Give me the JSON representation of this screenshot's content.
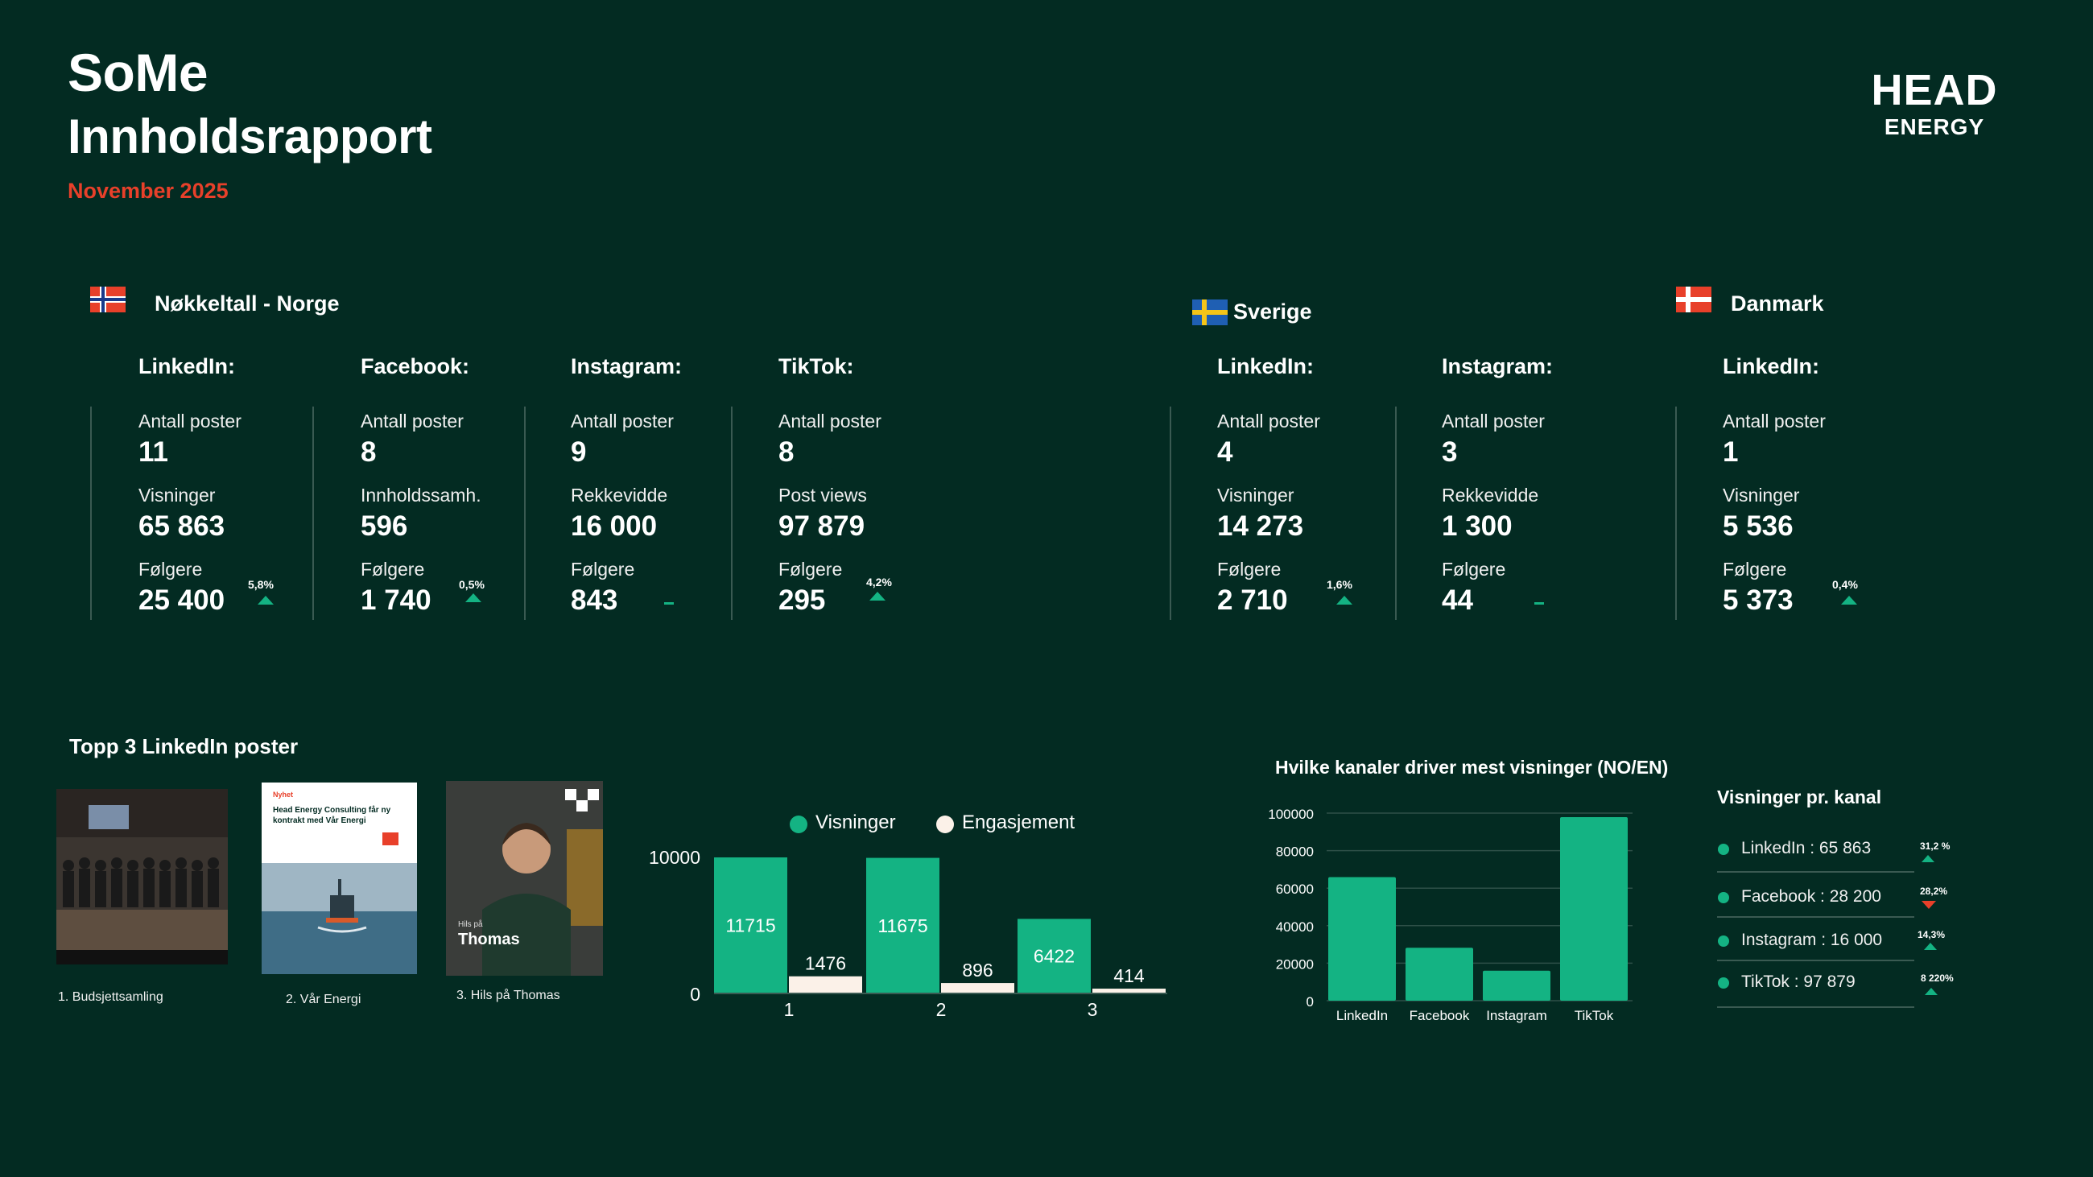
{
  "header": {
    "title_line1": "SoMe",
    "title_line2": "Innholdsrapport",
    "subtitle": "November 2025",
    "logo_line1": "HEAD",
    "logo_line2": "ENERGY"
  },
  "norway": {
    "heading": "Nøkkeltall - Norge",
    "linkedin": {
      "platform": "LinkedIn:",
      "l1": "Antall poster",
      "v1": "11",
      "l2": "Visninger",
      "v2": "65 863",
      "l3": "Følgere",
      "v3": "25 400",
      "delta": "5,8%"
    },
    "facebook": {
      "platform": "Facebook:",
      "l1": "Antall poster",
      "v1": "8",
      "l2": "Innholdssamh.",
      "v2": "596",
      "l3": "Følgere",
      "v3": "1 740",
      "delta": "0,5%"
    },
    "instagram": {
      "platform": "Instagram:",
      "l1": "Antall poster",
      "v1": "9",
      "l2": "Rekkevidde",
      "v2": "16 000",
      "l3": "Følgere",
      "v3": "843"
    },
    "tiktok": {
      "platform": "TikTok:",
      "l1": "Antall poster",
      "v1": "8",
      "l2": "Post views",
      "v2": "97 879",
      "l3": "Følgere",
      "v3": "295",
      "delta": "4,2%"
    }
  },
  "sweden": {
    "heading": "Sverige",
    "linkedin": {
      "platform": "LinkedIn:",
      "l1": "Antall poster",
      "v1": "4",
      "l2": "Visninger",
      "v2": "14 273",
      "l3": "Følgere",
      "v3": "2 710",
      "delta": "1,6%"
    },
    "instagram": {
      "platform": "Instagram:",
      "l1": "Antall poster",
      "v1": "3",
      "l2": "Rekkevidde",
      "v2": "1 300",
      "l3": "Følgere",
      "v3": "44"
    }
  },
  "denmark": {
    "heading": "Danmark",
    "linkedin": {
      "platform": "LinkedIn:",
      "l1": "Antall poster",
      "v1": "1",
      "l2": "Visninger",
      "v2": "5 536",
      "l3": "Følgere",
      "v3": "5 373",
      "delta": "0,4%"
    }
  },
  "top3": {
    "heading": "Topp 3 LinkedIn poster",
    "posts": [
      {
        "caption": "1. Budsjettsamling"
      },
      {
        "caption": "2. Vår Energi",
        "thumb_tag": "Nyhet",
        "thumb_title": "Head Energy Consulting får ny kontrakt med Vår Energi"
      },
      {
        "caption": "3. Hils på Thomas",
        "thumb_small": "Hils på",
        "thumb_name": "Thomas"
      }
    ]
  },
  "colors": {
    "background": "#032b22",
    "accent_green": "#14b383",
    "accent_red": "#e8402a",
    "engagement": "#fbf1e8"
  },
  "chart_data": [
    {
      "type": "bar",
      "categories": [
        "1",
        "2",
        "3"
      ],
      "series": [
        {
          "name": "Visninger",
          "values": [
            11715,
            11675,
            6422
          ]
        },
        {
          "name": "Engasjement",
          "values": [
            1476,
            896,
            414
          ]
        }
      ],
      "yticks": [
        "0",
        "10000"
      ],
      "ylim": [
        0,
        11715
      ],
      "legend": "top"
    },
    {
      "type": "bar",
      "title": "Hvilke kanaler driver mest visninger (NO/EN)",
      "categories": [
        "LinkedIn",
        "Facebook",
        "Instagram",
        "TikTok"
      ],
      "values": [
        65863,
        28200,
        16000,
        97879
      ],
      "yticks": [
        "0",
        "20000",
        "40000",
        "60000",
        "80000",
        "100000"
      ],
      "ylim": [
        0,
        100000
      ],
      "grid": true
    }
  ],
  "kanal": {
    "heading": "Visninger pr. kanal",
    "rows": [
      {
        "label": "LinkedIn : 65 863",
        "pct": "31,2 %",
        "trend": "up"
      },
      {
        "label": "Facebook : 28 200",
        "pct": "28,2%",
        "trend": "down"
      },
      {
        "label": "Instagram : 16 000",
        "pct": "14,3%",
        "trend": "up"
      },
      {
        "label": "TikTok : 97 879",
        "pct": "8 220%",
        "trend": "up"
      }
    ]
  }
}
